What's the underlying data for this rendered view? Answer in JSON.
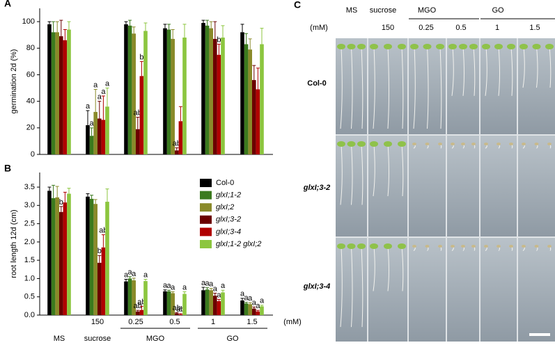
{
  "chart_data": [
    {
      "type": "bar",
      "panel": "A",
      "y_label": "germination 2d (%)",
      "ylim": [
        0,
        110
      ],
      "yticks": [
        0,
        20,
        40,
        60,
        80,
        100
      ],
      "series": [
        {
          "color": "#000000",
          "values": [
            98,
            22,
            98,
            95,
            99,
            92
          ],
          "errors": [
            2,
            11,
            2,
            3,
            2,
            6
          ],
          "annotations": [
            null,
            "a",
            null,
            null,
            null,
            null
          ]
        },
        {
          "color": "#3b7a1e",
          "values": [
            92,
            14,
            97,
            94,
            97,
            83
          ],
          "errors": [
            8,
            6,
            4,
            4,
            4,
            8
          ],
          "annotations": [
            null,
            "a",
            null,
            null,
            null,
            null
          ]
        },
        {
          "color": "#8a8a2a",
          "values": [
            92,
            32,
            91,
            87,
            95,
            79
          ],
          "errors": [
            8,
            17,
            5,
            7,
            5,
            8
          ],
          "annotations": [
            null,
            "a",
            null,
            null,
            null,
            null
          ]
        },
        {
          "color": "#6b0000",
          "values": [
            89,
            27,
            19,
            3,
            87,
            56
          ],
          "errors": [
            12,
            13,
            9,
            2,
            13,
            11
          ],
          "annotations": [
            null,
            "a",
            "ab",
            "ab",
            null,
            null
          ]
        },
        {
          "color": "#b00000",
          "values": [
            86,
            26,
            59,
            25,
            75,
            49
          ],
          "errors": [
            8,
            18,
            11,
            11,
            8,
            16
          ],
          "annotations": [
            null,
            "a",
            "b",
            null,
            "b",
            null
          ]
        },
        {
          "color": "#8cc63f",
          "values": [
            94,
            36,
            93,
            88,
            88,
            83
          ],
          "errors": [
            6,
            14,
            6,
            10,
            9,
            12
          ],
          "annotations": [
            null,
            "a",
            null,
            null,
            null,
            null
          ]
        }
      ]
    },
    {
      "type": "bar",
      "panel": "B",
      "y_label": "root length 12d (cm)",
      "ylim": [
        0,
        3.9
      ],
      "yticks": [
        {
          "value": 0,
          "label": "0.0"
        },
        0.5,
        {
          "value": 1,
          "label": "1.0"
        },
        1.5,
        {
          "value": 2,
          "label": "2.0"
        },
        2.5,
        {
          "value": 3,
          "label": "3.0"
        },
        3.5
      ],
      "categories": [
        null,
        "150",
        "0.25",
        "0.5",
        "1",
        "1.5"
      ],
      "groups": [
        "MS",
        "sucrose",
        "MGO",
        "MGO",
        "GO",
        "GO"
      ],
      "unit": "(mM)",
      "series": [
        {
          "name": "Col-0",
          "color": "#000000",
          "values": [
            3.4,
            3.24,
            0.92,
            0.65,
            0.68,
            0.4
          ],
          "errors": [
            0.1,
            0.08,
            0.06,
            0.04,
            0.08,
            0.06
          ],
          "annotations": [
            null,
            null,
            "a",
            "a",
            "a",
            "a"
          ]
        },
        {
          "name": "glxI;1-2",
          "color": "#3b7a1e",
          "values": [
            3.2,
            3.18,
            1.0,
            0.65,
            0.7,
            0.32
          ],
          "errors": [
            0.35,
            0.1,
            0.05,
            0.03,
            0.05,
            0.03
          ],
          "annotations": [
            null,
            null,
            "a",
            "a",
            "a",
            "a"
          ]
        },
        {
          "name": "glxI;2",
          "color": "#8a8a2a",
          "values": [
            3.22,
            3.04,
            0.95,
            0.6,
            0.68,
            0.3
          ],
          "errors": [
            0.3,
            0.12,
            0.06,
            0.04,
            0.05,
            0.04
          ],
          "annotations": [
            null,
            null,
            "a",
            "a",
            "a",
            "a"
          ]
        },
        {
          "name": "glxI;3-2",
          "color": "#6b0000",
          "values": [
            2.82,
            1.43,
            0.1,
            0.05,
            0.53,
            0.18
          ],
          "errors": [
            0.15,
            0.2,
            0.03,
            0.02,
            0.07,
            0.04
          ],
          "annotations": [
            "b",
            "b",
            "ab",
            "ab",
            "a",
            "a"
          ]
        },
        {
          "name": "glxI;3-4",
          "color": "#b00000",
          "values": [
            3.08,
            1.85,
            0.14,
            0.02,
            0.38,
            0.1
          ],
          "errors": [
            0.28,
            0.35,
            0.1,
            0.02,
            0.05,
            0.03
          ],
          "annotations": [
            null,
            "ab",
            "ab",
            "ab",
            "a",
            "a"
          ]
        },
        {
          "name": "glxI;1-2 glxI;2",
          "color": "#8cc63f",
          "values": [
            3.32,
            3.1,
            0.93,
            0.58,
            0.62,
            0.24
          ],
          "errors": [
            0.15,
            0.35,
            0.05,
            0.06,
            0.06,
            0.03
          ],
          "annotations": [
            null,
            null,
            "a",
            "a",
            "a",
            "a"
          ]
        }
      ]
    }
  ],
  "photo_panel": {
    "panel": "C",
    "headers": [
      "MS",
      "sucrose",
      "MGO",
      "GO"
    ],
    "concentrations": [
      "150",
      "0.25",
      "0.5",
      "1",
      "1.5"
    ],
    "unit": "(mM)",
    "rows": [
      "Col-0",
      "glxI;3-2",
      "glxI;3-4"
    ]
  }
}
